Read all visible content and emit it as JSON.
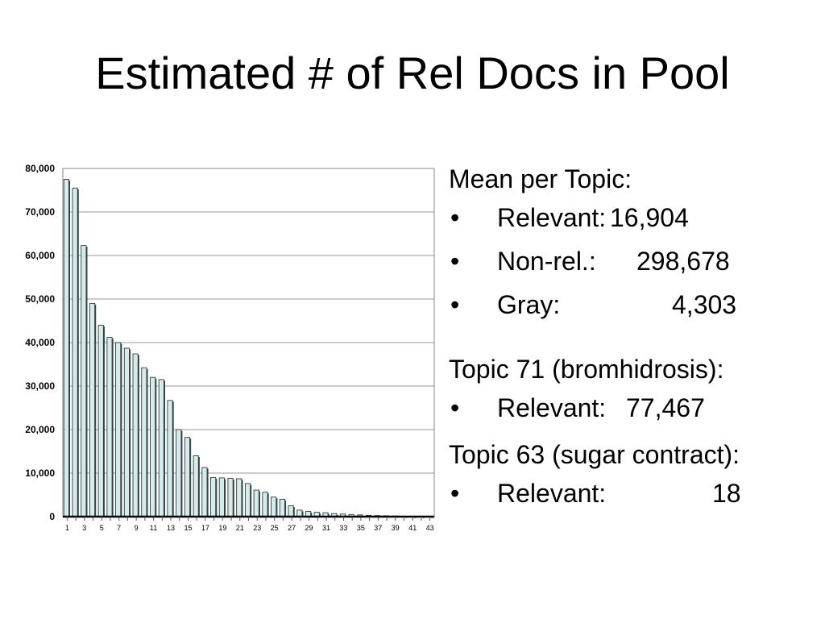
{
  "slide": {
    "title": "Estimated # of Rel Docs in Pool"
  },
  "chart_data": {
    "type": "bar",
    "title": "",
    "xlabel": "",
    "ylabel": "",
    "ylim": [
      0,
      80000
    ],
    "yticks": [
      "0",
      "10,000",
      "20,000",
      "30,000",
      "40,000",
      "50,000",
      "60,000",
      "70,000",
      "80,000"
    ],
    "categories": [
      "1",
      "2",
      "3",
      "4",
      "5",
      "6",
      "7",
      "8",
      "9",
      "10",
      "11",
      "12",
      "13",
      "14",
      "15",
      "16",
      "17",
      "18",
      "19",
      "20",
      "21",
      "22",
      "23",
      "24",
      "25",
      "26",
      "27",
      "28",
      "29",
      "30",
      "31",
      "32",
      "33",
      "34",
      "35",
      "36",
      "37",
      "38",
      "39",
      "40",
      "41",
      "42",
      "43"
    ],
    "x_tick_labels": [
      "1",
      "3",
      "5",
      "7",
      "9",
      "11",
      "13",
      "15",
      "17",
      "19",
      "21",
      "23",
      "25",
      "27",
      "29",
      "31",
      "33",
      "35",
      "37",
      "39",
      "41",
      "43"
    ],
    "values": [
      77500,
      75500,
      62300,
      49000,
      44000,
      41200,
      40000,
      38700,
      37400,
      34200,
      32000,
      31500,
      26700,
      20000,
      18200,
      14000,
      11300,
      9000,
      8900,
      8800,
      8700,
      7600,
      6100,
      5600,
      4500,
      4000,
      2500,
      1500,
      1200,
      1000,
      900,
      700,
      600,
      500,
      400,
      300,
      250,
      200,
      150,
      100,
      60,
      40,
      18
    ],
    "grid": true,
    "legend": "none",
    "bar_color": "#d6ecec"
  },
  "stats": {
    "mean_heading": "Mean per Topic:",
    "mean_items": [
      {
        "bullet": "•",
        "label": "Relevant:",
        "value": "16,904"
      },
      {
        "bullet": "•",
        "label": "Non-rel.:",
        "value": "298,678"
      },
      {
        "bullet": "•",
        "label": "Gray:",
        "value": "4,303"
      }
    ],
    "topic71_heading": "Topic 71 (bromhidrosis):",
    "topic71_items": [
      {
        "bullet": "•",
        "label": "Relevant:",
        "value": "77,467"
      }
    ],
    "topic63_heading": "Topic 63 (sugar contract):",
    "topic63_items": [
      {
        "bullet": "•",
        "label": "Relevant:",
        "value": "18"
      }
    ]
  }
}
